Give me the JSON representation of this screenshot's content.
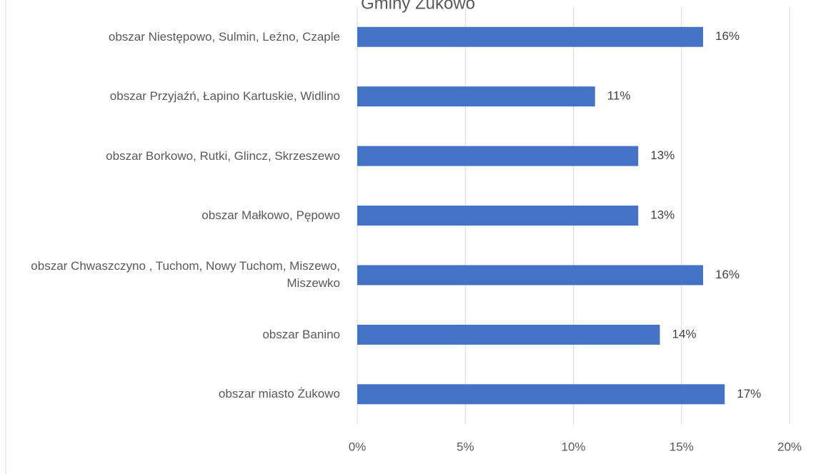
{
  "chart_data": {
    "type": "bar",
    "orientation": "horizontal",
    "title": "Gminy Żukowo",
    "categories": [
      "obszar Niestępowo, Sulmin, Leźno, Czaple",
      "obszar Przyjaźń, Łapino Kartuskie, Widlino",
      "obszar Borkowo, Rutki, Glincz, Skrzeszewo",
      "obszar Małkowo, Pępowo",
      "obszar Chwaszczyno , Tuchom, Nowy Tuchom, Miszewo, Miszewko",
      "obszar Banino",
      "obszar miasto Żukowo"
    ],
    "values": [
      16,
      11,
      13,
      13,
      16,
      14,
      17
    ],
    "value_labels": [
      "16%",
      "11%",
      "13%",
      "13%",
      "16%",
      "14%",
      "17%"
    ],
    "color": "#4472c4",
    "xlim": [
      0,
      20
    ],
    "xticks": [
      {
        "value": 0,
        "label": "0%"
      },
      {
        "value": 5,
        "label": "5%"
      },
      {
        "value": 10,
        "label": "10%"
      },
      {
        "value": 15,
        "label": "15%"
      },
      {
        "value": 20,
        "label": "20%"
      }
    ],
    "grid": true
  }
}
